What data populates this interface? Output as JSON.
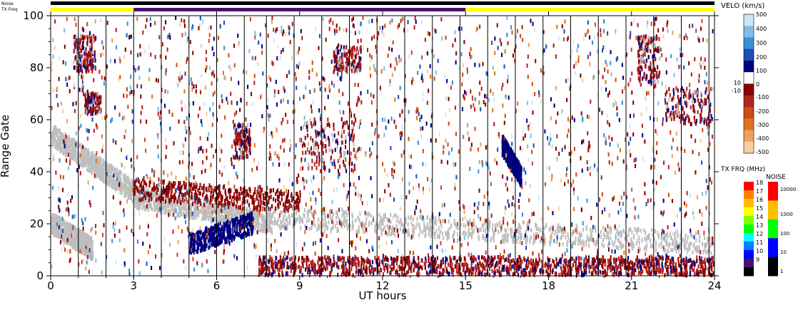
{
  "chart_data": {
    "type": "heatmap",
    "title": "",
    "xlabel": "UT hours",
    "ylabel": "Range Gate",
    "xlim": [
      0,
      24
    ],
    "ylim": [
      0,
      100
    ],
    "x_ticks": [
      "0",
      "3",
      "6",
      "9",
      "12",
      "15",
      "18",
      "21",
      "24"
    ],
    "y_ticks": [
      "0",
      "20",
      "40",
      "60",
      "80",
      "100"
    ],
    "status_bars": {
      "noise_label": "Noise",
      "txfreq_label": "TX Freq",
      "txfreq_segments": [
        {
          "start": 0,
          "end": 3,
          "color": "#ffff00"
        },
        {
          "start": 3,
          "end": 15,
          "color": "#4b0f6e"
        },
        {
          "start": 15,
          "end": 24,
          "color": "#ffff00"
        }
      ]
    },
    "scan_boundaries_ut": [
      1,
      2,
      3,
      4,
      5,
      6,
      7,
      7.8,
      8.8,
      9.8,
      10.8,
      11.8,
      12.8,
      13.8,
      14.8,
      15.8,
      16.8,
      17.8,
      18.8,
      19.8,
      20.8,
      21.8,
      22.8,
      23.8
    ],
    "ground_scatter_color": "#bebebe",
    "features": [
      {
        "kind": "ground_scatter",
        "ut_start": 0,
        "ut_end": 3,
        "gate_start": 54,
        "gate_end": 32
      },
      {
        "kind": "ground_scatter",
        "ut_start": 0,
        "ut_end": 1.5,
        "gate_start": 20,
        "gate_end": 10
      },
      {
        "kind": "ground_scatter",
        "ut_start": 3,
        "ut_end": 8,
        "gate_start": 30,
        "gate_end": 20
      },
      {
        "kind": "ground_scatter",
        "ut_start": 8,
        "ut_end": 24,
        "gate_start": 22,
        "gate_end": 12
      },
      {
        "kind": "negative_velocity_band",
        "ut_start": 3,
        "ut_end": 9,
        "gate_start": 33,
        "gate_end": 28,
        "color": "#8b0000"
      },
      {
        "kind": "positive_velocity_patch",
        "ut_start": 5,
        "ut_end": 7.3,
        "gate_start": 12,
        "gate_end": 20,
        "color": "#000080"
      },
      {
        "kind": "positive_velocity_patch",
        "ut_start": 16.3,
        "ut_end": 17,
        "gate_start": 50,
        "gate_end": 38,
        "color": "#000080"
      }
    ],
    "velocity_scale": {
      "title": "VELO (km/s)",
      "labels": [
        "500",
        "400",
        "300",
        "200",
        "100",
        "10",
        "-10",
        "0",
        "-100",
        "-200",
        "-300",
        "-400",
        "-500"
      ],
      "colors": [
        "#cde6f5",
        "#7fbfe6",
        "#3a8fd6",
        "#1a4fb5",
        "#000080",
        "#ffffff",
        "#8b0000",
        "#b22222",
        "#cc4b1a",
        "#e0761a",
        "#f0a060",
        "#f8cfa0"
      ]
    },
    "txfreq_scale": {
      "title": "TX FRQ (MHz)",
      "labels": [
        "18",
        "17",
        "16",
        "15",
        "14",
        "13",
        "12",
        "11",
        "10",
        "9"
      ],
      "colors": [
        "#ff0000",
        "#ff7f00",
        "#ffbf00",
        "#ffff00",
        "#7fff00",
        "#00ff00",
        "#00ffff",
        "#007fff",
        "#0000ff",
        "#4b0f6e",
        "#000000"
      ]
    },
    "noise_scale": {
      "title": "NOISE",
      "labels": [
        "10000",
        "1000",
        "100",
        "10",
        "1"
      ],
      "colors": [
        "#ff0000",
        "#ffbf00",
        "#00ff00",
        "#0000ff",
        "#000000"
      ]
    }
  }
}
